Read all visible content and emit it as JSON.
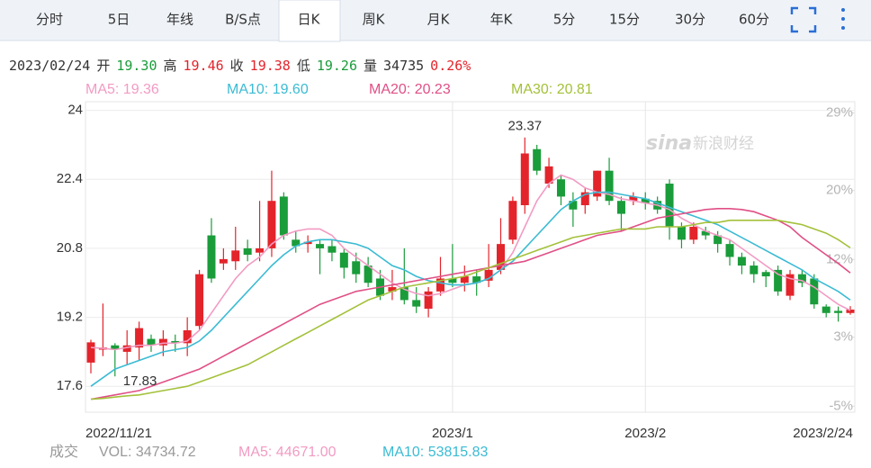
{
  "tabs": [
    "分时",
    "5日",
    "年线",
    "B/S点",
    "日K",
    "周K",
    "月K",
    "年K",
    "5分",
    "15分",
    "30分",
    "60分"
  ],
  "active_tab": 4,
  "info": [
    {
      "text": "2023/02/24",
      "color": "#333333"
    },
    {
      "text": "开",
      "color": "#333333"
    },
    {
      "text": "19.30",
      "color": "#1a9c3a"
    },
    {
      "text": "高",
      "color": "#333333"
    },
    {
      "text": "19.46",
      "color": "#e3242b"
    },
    {
      "text": "收",
      "color": "#333333"
    },
    {
      "text": "19.38",
      "color": "#e3242b"
    },
    {
      "text": "低",
      "color": "#333333"
    },
    {
      "text": "19.26",
      "color": "#1a9c3a"
    },
    {
      "text": "量",
      "color": "#333333"
    },
    {
      "text": "34735",
      "color": "#333333"
    },
    {
      "text": "0.26%",
      "color": "#e3242b"
    }
  ],
  "volume_legend": [
    {
      "text": "成交",
      "color": "#999999"
    },
    {
      "text": "VOL: 34734.72",
      "color": "#999999"
    },
    {
      "text": "MA5: 44671.00",
      "color": "#f29bc3"
    },
    {
      "text": "MA10: 53815.83",
      "color": "#3bbbd3"
    }
  ],
  "watermark": [
    "sina",
    "新浪财经"
  ],
  "chart_data": {
    "type": "candlestick",
    "categories": [
      "2022/11/21",
      null,
      null,
      null,
      null,
      null,
      null,
      null,
      null,
      null,
      null,
      null,
      null,
      null,
      null,
      null,
      null,
      null,
      null,
      null,
      null,
      null,
      null,
      null,
      null,
      null,
      null,
      null,
      null,
      null,
      "2023/1",
      null,
      null,
      null,
      null,
      null,
      null,
      null,
      null,
      null,
      null,
      null,
      null,
      null,
      null,
      null,
      "2023/2",
      null,
      null,
      null,
      null,
      null,
      null,
      null,
      null,
      null,
      null,
      null,
      null,
      null,
      null,
      null,
      null,
      "2023/2/24"
    ],
    "open": [
      18.15,
      18.45,
      18.55,
      18.4,
      18.5,
      18.7,
      18.55,
      18.65,
      18.6,
      19.0,
      21.1,
      20.45,
      20.5,
      20.8,
      20.7,
      20.8,
      22.0,
      21.0,
      20.9,
      20.9,
      20.85,
      20.7,
      20.5,
      20.4,
      20.1,
      19.8,
      19.9,
      19.6,
      19.4,
      19.8,
      20.1,
      20.0,
      20.15,
      20.05,
      20.3,
      21.0,
      21.8,
      23.1,
      22.3,
      22.4,
      21.9,
      21.8,
      22.0,
      22.6,
      21.9,
      21.9,
      21.95,
      21.9,
      22.3,
      21.3,
      21.0,
      21.2,
      21.1,
      20.9,
      20.6,
      20.4,
      20.25,
      20.3,
      19.7,
      20.2,
      20.1,
      19.45,
      19.35,
      19.3
    ],
    "high": [
      18.68,
      19.52,
      18.6,
      18.9,
      19.1,
      18.8,
      18.9,
      18.8,
      19.2,
      20.3,
      21.5,
      20.8,
      21.3,
      21.0,
      21.9,
      22.6,
      22.1,
      21.2,
      21.1,
      21.0,
      21.0,
      20.8,
      20.7,
      20.6,
      20.3,
      20.3,
      20.8,
      19.9,
      19.9,
      20.6,
      20.9,
      20.4,
      20.3,
      20.9,
      21.5,
      22.0,
      23.37,
      23.2,
      22.9,
      22.5,
      22.1,
      22.2,
      22.6,
      22.9,
      22.0,
      22.1,
      22.1,
      22.0,
      22.4,
      21.4,
      21.4,
      21.3,
      21.2,
      21.0,
      20.7,
      20.5,
      20.3,
      20.4,
      20.3,
      20.3,
      20.2,
      19.5,
      19.45,
      19.46
    ],
    "low": [
      17.9,
      18.3,
      17.83,
      18.1,
      18.2,
      18.4,
      18.3,
      18.4,
      18.3,
      18.9,
      20.0,
      20.3,
      20.3,
      20.5,
      20.5,
      20.6,
      21.0,
      20.7,
      20.7,
      20.2,
      20.5,
      20.1,
      20.0,
      19.9,
      19.6,
      19.6,
      19.5,
      19.3,
      19.2,
      19.7,
      19.9,
      19.8,
      19.7,
      19.9,
      20.2,
      20.9,
      21.6,
      22.5,
      22.2,
      21.8,
      21.3,
      21.6,
      21.9,
      21.8,
      21.2,
      21.8,
      21.7,
      21.6,
      21.0,
      20.8,
      20.9,
      21.0,
      20.7,
      20.4,
      20.2,
      20.0,
      19.9,
      19.7,
      19.6,
      19.9,
      19.4,
      19.2,
      19.1,
      19.26
    ],
    "close": [
      18.62,
      18.5,
      18.45,
      18.55,
      18.95,
      18.55,
      18.7,
      18.6,
      18.9,
      20.2,
      20.1,
      20.55,
      20.75,
      20.65,
      20.8,
      21.9,
      21.1,
      20.85,
      20.95,
      20.8,
      20.7,
      20.35,
      20.2,
      20.0,
      19.7,
      19.9,
      19.6,
      19.45,
      19.8,
      20.1,
      20.0,
      20.15,
      20.0,
      20.3,
      20.9,
      21.9,
      23.0,
      22.6,
      22.7,
      22.0,
      21.7,
      22.1,
      22.6,
      21.9,
      21.6,
      22.0,
      21.85,
      21.7,
      21.3,
      21.0,
      21.3,
      21.1,
      20.9,
      20.6,
      20.4,
      20.2,
      20.15,
      19.8,
      20.2,
      20.0,
      19.5,
      19.3,
      19.3,
      19.38
    ],
    "up_color": "#e3242b",
    "down_color": "#1a9c3a",
    "series": [
      {
        "name": "MA5: 19.36",
        "color": "#f29bc3",
        "values": [
          18.5,
          18.48,
          18.45,
          18.5,
          18.55,
          18.55,
          18.6,
          18.6,
          18.65,
          18.9,
          19.3,
          19.7,
          20.1,
          20.4,
          20.6,
          20.9,
          21.1,
          21.2,
          21.25,
          21.25,
          21.1,
          20.8,
          20.6,
          20.4,
          20.2,
          20.0,
          19.85,
          19.75,
          19.7,
          19.75,
          19.85,
          19.95,
          20.0,
          20.1,
          20.3,
          20.7,
          21.3,
          21.9,
          22.3,
          22.5,
          22.4,
          22.2,
          22.1,
          22.05,
          21.95,
          21.9,
          21.85,
          21.8,
          21.7,
          21.5,
          21.35,
          21.2,
          21.1,
          21.0,
          20.8,
          20.6,
          20.4,
          20.2,
          20.1,
          20.05,
          19.9,
          19.7,
          19.5,
          19.36
        ]
      },
      {
        "name": "MA10: 19.60",
        "color": "#3bbbd3",
        "values": [
          17.6,
          17.8,
          18.0,
          18.1,
          18.2,
          18.3,
          18.4,
          18.45,
          18.5,
          18.65,
          18.9,
          19.2,
          19.5,
          19.8,
          20.1,
          20.4,
          20.65,
          20.85,
          20.95,
          21.0,
          21.0,
          20.95,
          20.9,
          20.8,
          20.6,
          20.4,
          20.3,
          20.15,
          20.05,
          20.0,
          19.95,
          19.95,
          20.0,
          20.1,
          20.3,
          20.5,
          20.8,
          21.1,
          21.4,
          21.7,
          21.9,
          22.05,
          22.1,
          22.1,
          22.05,
          22.0,
          21.95,
          21.85,
          21.75,
          21.65,
          21.55,
          21.45,
          21.35,
          21.2,
          21.05,
          20.9,
          20.75,
          20.6,
          20.45,
          20.3,
          20.1,
          19.95,
          19.8,
          19.6
        ]
      },
      {
        "name": "MA20: 20.23",
        "color": "#e04f86",
        "values": [
          17.3,
          17.35,
          17.4,
          17.45,
          17.5,
          17.6,
          17.7,
          17.8,
          17.9,
          18.0,
          18.15,
          18.3,
          18.45,
          18.6,
          18.75,
          18.9,
          19.05,
          19.2,
          19.35,
          19.5,
          19.6,
          19.7,
          19.8,
          19.85,
          19.9,
          19.95,
          20.0,
          20.05,
          20.1,
          20.15,
          20.2,
          20.25,
          20.3,
          20.35,
          20.4,
          20.45,
          20.5,
          20.6,
          20.7,
          20.8,
          20.9,
          21.0,
          21.1,
          21.15,
          21.2,
          21.3,
          21.4,
          21.5,
          21.55,
          21.6,
          21.65,
          21.7,
          21.72,
          21.72,
          21.7,
          21.65,
          21.55,
          21.45,
          21.3,
          21.05,
          20.85,
          20.65,
          20.45,
          20.23
        ]
      },
      {
        "name": "MA30: 20.81",
        "color": "#a3c13a",
        "values": [
          17.3,
          17.32,
          17.35,
          17.38,
          17.4,
          17.45,
          17.5,
          17.55,
          17.6,
          17.7,
          17.8,
          17.9,
          18.0,
          18.1,
          18.25,
          18.4,
          18.55,
          18.7,
          18.85,
          19.0,
          19.15,
          19.3,
          19.45,
          19.6,
          19.7,
          19.8,
          19.9,
          19.95,
          20.0,
          20.05,
          20.1,
          20.15,
          20.25,
          20.35,
          20.45,
          20.55,
          20.65,
          20.75,
          20.85,
          20.95,
          21.05,
          21.1,
          21.15,
          21.2,
          21.25,
          21.25,
          21.25,
          21.3,
          21.3,
          21.3,
          21.35,
          21.4,
          21.4,
          21.45,
          21.45,
          21.45,
          21.45,
          21.45,
          21.4,
          21.35,
          21.25,
          21.15,
          21.0,
          20.81
        ]
      }
    ],
    "max_label": "23.37",
    "min_label": "17.83",
    "ylim": [
      17.0,
      24.2
    ],
    "yticks": [
      17.6,
      19.2,
      20.8,
      22.4,
      24
    ],
    "y2lim": [
      -5.7,
      30.3
    ],
    "y2ticks": [
      {
        "value": 29,
        "label": "29%"
      },
      {
        "value": 20,
        "label": "20%"
      },
      {
        "value": 12,
        "label": "12%"
      },
      {
        "value": 3,
        "label": "3%"
      },
      {
        "value": -5,
        "label": "-5%"
      }
    ],
    "grid": true
  }
}
